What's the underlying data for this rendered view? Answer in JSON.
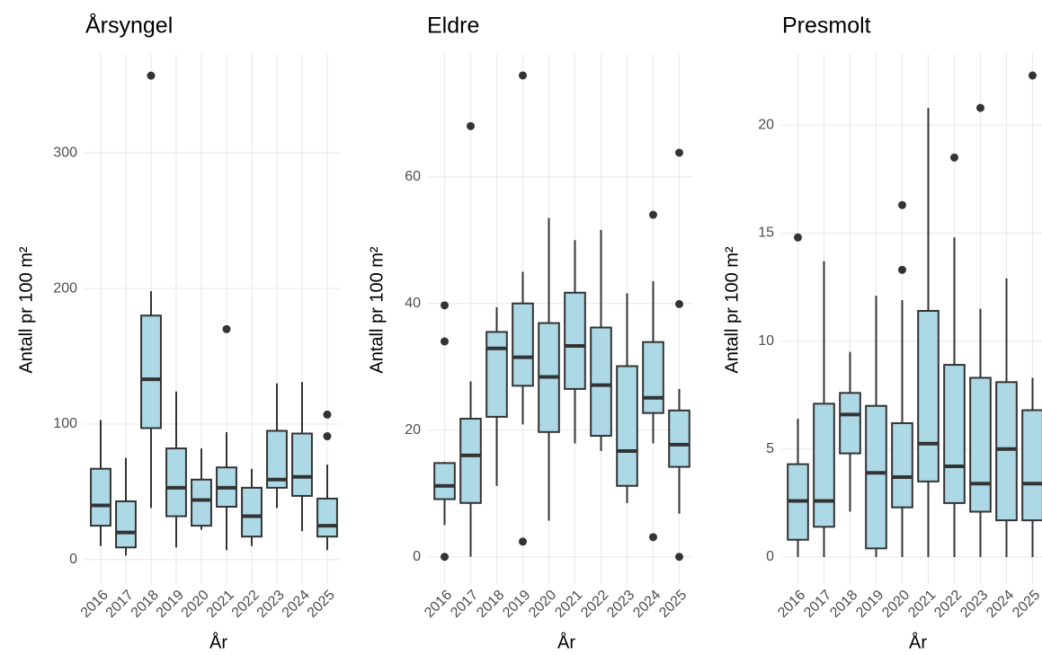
{
  "chart_data": [
    {
      "type": "box",
      "title": "Årsyngel",
      "xlabel": "År",
      "ylabel": "Antall pr 100 m²",
      "categories": [
        "2016",
        "2017",
        "2018",
        "2019",
        "2020",
        "2021",
        "2022",
        "2023",
        "2024",
        "2025"
      ],
      "fill": "#add8e6",
      "line_color": "#333333",
      "grid": true,
      "ylim": [
        -18,
        373
      ],
      "yticks": [
        0,
        100,
        200,
        300
      ],
      "boxes": [
        {
          "low": 10,
          "q1": 25,
          "median": 40,
          "q3": 67,
          "high": 103,
          "outliers": []
        },
        {
          "low": 3,
          "q1": 9,
          "median": 20,
          "q3": 43,
          "high": 75,
          "outliers": []
        },
        {
          "low": 38,
          "q1": 97,
          "median": 133,
          "q3": 180,
          "high": 198,
          "outliers": [
            357
          ]
        },
        {
          "low": 9,
          "q1": 32,
          "median": 53,
          "q3": 82,
          "high": 124,
          "outliers": []
        },
        {
          "low": 22,
          "q1": 25,
          "median": 44,
          "q3": 59,
          "high": 82,
          "outliers": []
        },
        {
          "low": 7,
          "q1": 39,
          "median": 53,
          "q3": 68,
          "high": 94,
          "outliers": [
            170
          ]
        },
        {
          "low": 10,
          "q1": 17,
          "median": 32,
          "q3": 53,
          "high": 67,
          "outliers": []
        },
        {
          "low": 38,
          "q1": 53,
          "median": 59,
          "q3": 95,
          "high": 130,
          "outliers": []
        },
        {
          "low": 21,
          "q1": 47,
          "median": 61,
          "q3": 93,
          "high": 131,
          "outliers": []
        },
        {
          "low": 7,
          "q1": 17,
          "median": 25,
          "q3": 45,
          "high": 70,
          "outliers": [
            107,
            91
          ]
        }
      ]
    },
    {
      "type": "box",
      "title": "Eldre",
      "xlabel": "År",
      "ylabel": "Antall pr 100 m²",
      "categories": [
        "2016",
        "2017",
        "2018",
        "2019",
        "2020",
        "2021",
        "2022",
        "2023",
        "2024",
        "2025"
      ],
      "fill": "#add8e6",
      "line_color": "#333333",
      "grid": true,
      "ylim": [
        -4.3,
        79.4
      ],
      "yticks": [
        0,
        20,
        40,
        60
      ],
      "boxes": [
        {
          "low": 5,
          "q1": 9.1,
          "median": 11.2,
          "q3": 14.8,
          "high": 15,
          "outliers": [
            39.7,
            34,
            0
          ]
        },
        {
          "low": 0,
          "q1": 8.5,
          "median": 16,
          "q3": 21.8,
          "high": 27.7,
          "outliers": [
            68
          ]
        },
        {
          "low": 11.2,
          "q1": 22.1,
          "median": 32.9,
          "q3": 35.5,
          "high": 39.4,
          "outliers": []
        },
        {
          "low": 20.9,
          "q1": 27,
          "median": 31.5,
          "q3": 40,
          "high": 45,
          "outliers": [
            76,
            2.4
          ]
        },
        {
          "low": 5.7,
          "q1": 19.7,
          "median": 28.4,
          "q3": 36.9,
          "high": 53.5,
          "outliers": []
        },
        {
          "low": 17.9,
          "q1": 26.5,
          "median": 33.3,
          "q3": 41.7,
          "high": 50,
          "outliers": []
        },
        {
          "low": 16.7,
          "q1": 19.1,
          "median": 27.1,
          "q3": 36.2,
          "high": 51.6,
          "outliers": []
        },
        {
          "low": 8.5,
          "q1": 11.2,
          "median": 16.7,
          "q3": 30.1,
          "high": 41.6,
          "outliers": []
        },
        {
          "low": 17.9,
          "q1": 22.7,
          "median": 25.1,
          "q3": 33.9,
          "high": 43.5,
          "outliers": [
            54,
            3.1
          ]
        },
        {
          "low": 6.8,
          "q1": 14.2,
          "median": 17.7,
          "q3": 23.1,
          "high": 26.5,
          "outliers": [
            63.8,
            39.9,
            0
          ]
        }
      ]
    },
    {
      "type": "box",
      "title": "Presmolt",
      "xlabel": "År",
      "ylabel": "Antall pr 100 m²",
      "categories": [
        "2016",
        "2017",
        "2018",
        "2019",
        "2020",
        "2021",
        "2022",
        "2023",
        "2024",
        "2025"
      ],
      "fill": "#add8e6",
      "line_color": "#333333",
      "grid": true,
      "ylim": [
        -1.25,
        23.3
      ],
      "yticks": [
        0,
        5,
        10,
        15,
        20
      ],
      "boxes": [
        {
          "low": 0,
          "q1": 0.8,
          "median": 2.6,
          "q3": 4.3,
          "high": 6.4,
          "outliers": [
            14.8
          ]
        },
        {
          "low": 0,
          "q1": 1.4,
          "median": 2.6,
          "q3": 7.1,
          "high": 13.7,
          "outliers": []
        },
        {
          "low": 2.1,
          "q1": 4.8,
          "median": 6.6,
          "q3": 7.6,
          "high": 9.5,
          "outliers": []
        },
        {
          "low": 0,
          "q1": 0.4,
          "median": 3.9,
          "q3": 7,
          "high": 12.1,
          "outliers": []
        },
        {
          "low": 0,
          "q1": 2.3,
          "median": 3.7,
          "q3": 6.2,
          "high": 11.9,
          "outliers": [
            16.3,
            13.3
          ]
        },
        {
          "low": 0,
          "q1": 3.5,
          "median": 5.25,
          "q3": 11.4,
          "high": 20.8,
          "outliers": []
        },
        {
          "low": 0,
          "q1": 2.5,
          "median": 4.2,
          "q3": 8.9,
          "high": 14.8,
          "outliers": [
            18.5
          ]
        },
        {
          "low": 0,
          "q1": 2.1,
          "median": 3.4,
          "q3": 8.3,
          "high": 11.5,
          "outliers": [
            20.8
          ]
        },
        {
          "low": 0,
          "q1": 1.7,
          "median": 5,
          "q3": 8.1,
          "high": 12.9,
          "outliers": []
        },
        {
          "low": 0,
          "q1": 1.7,
          "median": 3.4,
          "q3": 6.8,
          "high": 8.3,
          "outliers": [
            22.3
          ]
        }
      ]
    }
  ]
}
